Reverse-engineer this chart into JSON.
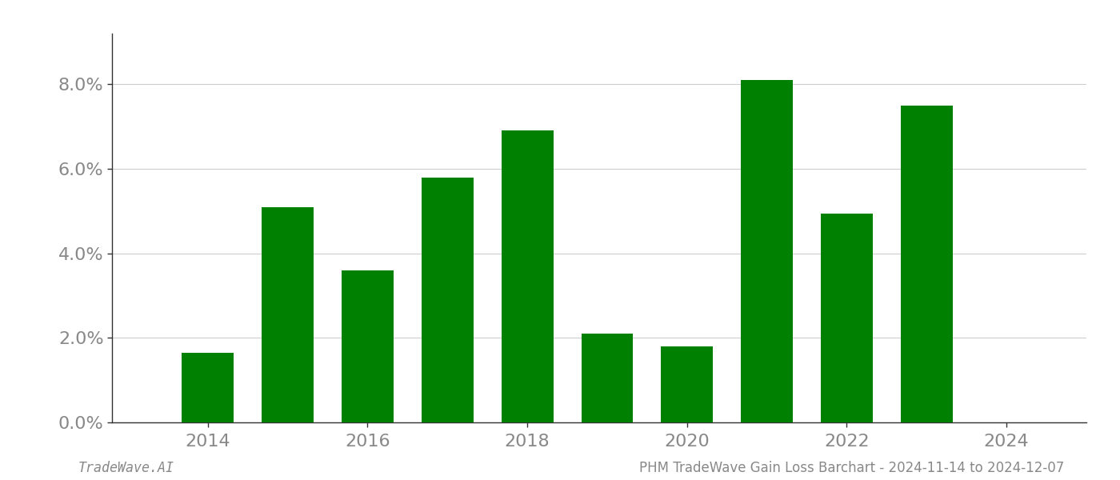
{
  "years": [
    2014,
    2015,
    2016,
    2017,
    2018,
    2019,
    2020,
    2021,
    2022,
    2023
  ],
  "values": [
    0.0165,
    0.051,
    0.036,
    0.058,
    0.069,
    0.021,
    0.018,
    0.081,
    0.0495,
    0.075
  ],
  "bar_color": "#008000",
  "ylim": [
    0,
    0.092
  ],
  "yticks": [
    0.0,
    0.02,
    0.04,
    0.06,
    0.08
  ],
  "xtick_labels": [
    "2014",
    "2016",
    "2018",
    "2020",
    "2022",
    "2024"
  ],
  "xtick_positions": [
    2014,
    2016,
    2018,
    2020,
    2022,
    2024
  ],
  "footer_left": "TradeWave.AI",
  "footer_right": "PHM TradeWave Gain Loss Barchart - 2024-11-14 to 2024-12-07",
  "background_color": "#ffffff",
  "grid_color": "#cccccc",
  "tick_color": "#888888",
  "bar_width": 0.65,
  "xlim_left": 2012.8,
  "xlim_right": 2025.0
}
